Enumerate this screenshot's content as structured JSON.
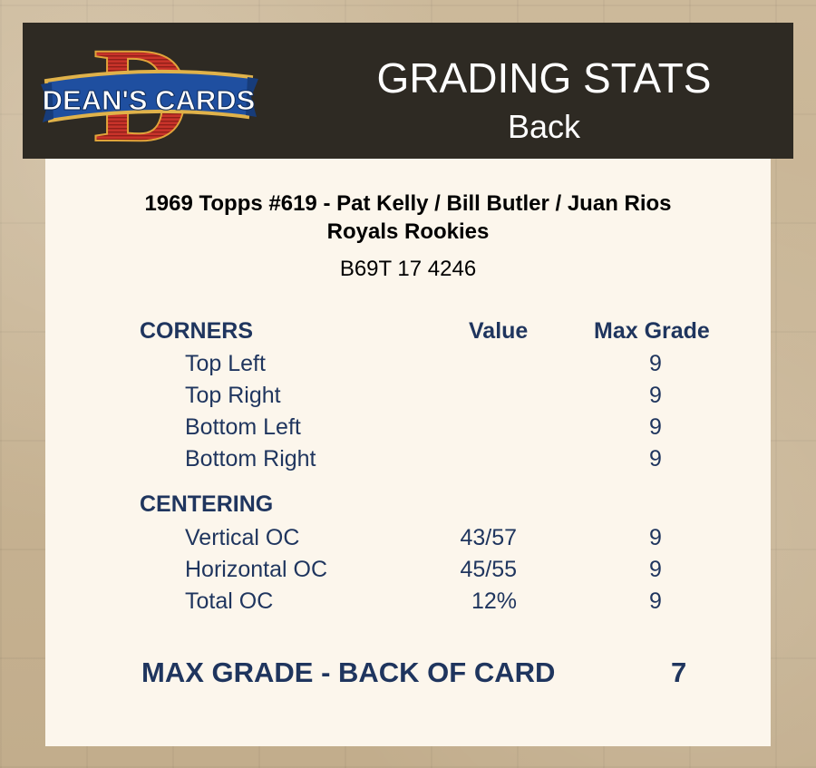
{
  "logo": {
    "letter": "D",
    "banner_text": "DEAN'S CARDS"
  },
  "header": {
    "title": "GRADING STATS",
    "subtitle": "Back"
  },
  "card": {
    "name_line1": "1969 Topps #619  -  Pat Kelly / Bill Butler / Juan Rios",
    "name_line2": "Royals Rookies",
    "cert": "B69T 17 4246"
  },
  "columns": {
    "value": "Value",
    "max_grade": "Max Grade"
  },
  "corners": {
    "heading": "CORNERS",
    "rows": [
      {
        "label": "Top Left",
        "value": "",
        "max": "9"
      },
      {
        "label": "Top Right",
        "value": "",
        "max": "9"
      },
      {
        "label": "Bottom Left",
        "value": "",
        "max": "9"
      },
      {
        "label": "Bottom Right",
        "value": "",
        "max": "9"
      }
    ]
  },
  "centering": {
    "heading": "CENTERING",
    "rows": [
      {
        "label": "Vertical OC",
        "value": "43/57",
        "max": "9"
      },
      {
        "label": "Horizontal OC",
        "value": "45/55",
        "max": "9"
      },
      {
        "label": "Total OC",
        "value": "12%",
        "max": "9"
      }
    ]
  },
  "summary": {
    "label": "MAX GRADE - BACK OF CARD",
    "value": "7"
  }
}
